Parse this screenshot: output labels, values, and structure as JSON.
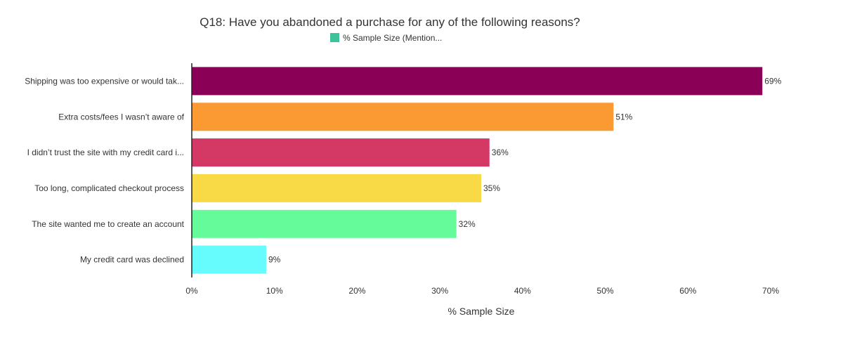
{
  "chart_data": {
    "type": "bar",
    "orientation": "horizontal",
    "title": "Q18: Have you abandoned a purchase for any of the following reasons?",
    "legend": {
      "label": "% Sample Size (Mention...",
      "color": "#3cc39a",
      "placement": "top-center"
    },
    "categories": [
      "Shipping was too expensive or would tak...",
      "Extra costs/fees I wasn’t aware of",
      "I didn’t trust the site with my credit card i...",
      "Too long, complicated checkout process",
      "The site wanted me to create an account",
      "My credit card was declined"
    ],
    "series": [
      {
        "values": [
          69,
          51,
          36,
          35,
          32,
          9
        ],
        "labels": [
          "69%",
          "51%",
          "36%",
          "35%",
          "32%",
          "9%"
        ],
        "colors": [
          "#8b0057",
          "#fb9a33",
          "#d43966",
          "#f8d946",
          "#66fb9a",
          "#66fcfd"
        ]
      }
    ],
    "xlabel": "% Sample Size",
    "xlim": [
      0,
      70
    ],
    "xticks": [
      0,
      10,
      20,
      30,
      40,
      50,
      60,
      70
    ],
    "xtick_labels": [
      "0%",
      "10%",
      "20%",
      "30%",
      "40%",
      "50%",
      "60%",
      "70%"
    ],
    "grid": false
  }
}
